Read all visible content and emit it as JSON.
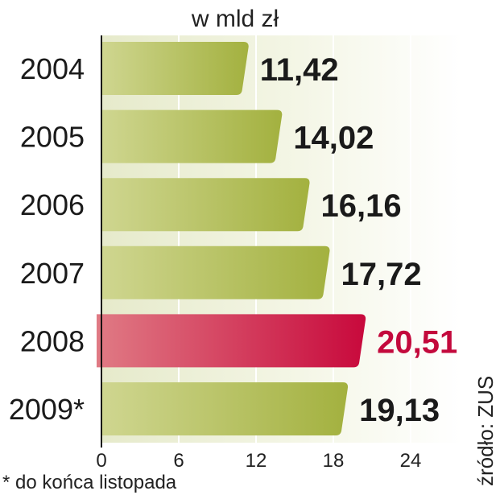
{
  "chart_data": {
    "type": "bar",
    "orientation": "horizontal",
    "unit_label": "w mld zł",
    "categories": [
      "2004",
      "2005",
      "2006",
      "2007",
      "2008",
      "2009*"
    ],
    "values": [
      11.42,
      14.02,
      16.16,
      17.72,
      20.51,
      19.13
    ],
    "value_labels": [
      "11,42",
      "14,02",
      "16,16",
      "17,72",
      "20,51",
      "19,13"
    ],
    "highlight_index": 4,
    "x_ticks": [
      0,
      6,
      12,
      18,
      24
    ],
    "xlim": [
      0,
      24
    ],
    "grid": true,
    "footnote": "* do końca listopada",
    "source": "źródło: ZUS",
    "colors": {
      "bar": "#a3b13f",
      "bar_light": "#cfd690",
      "highlight": "#c8093c",
      "highlight_light": "#e07a84",
      "highlight_text": "#c3093c",
      "background_gradient": "#e9ecd0"
    }
  }
}
